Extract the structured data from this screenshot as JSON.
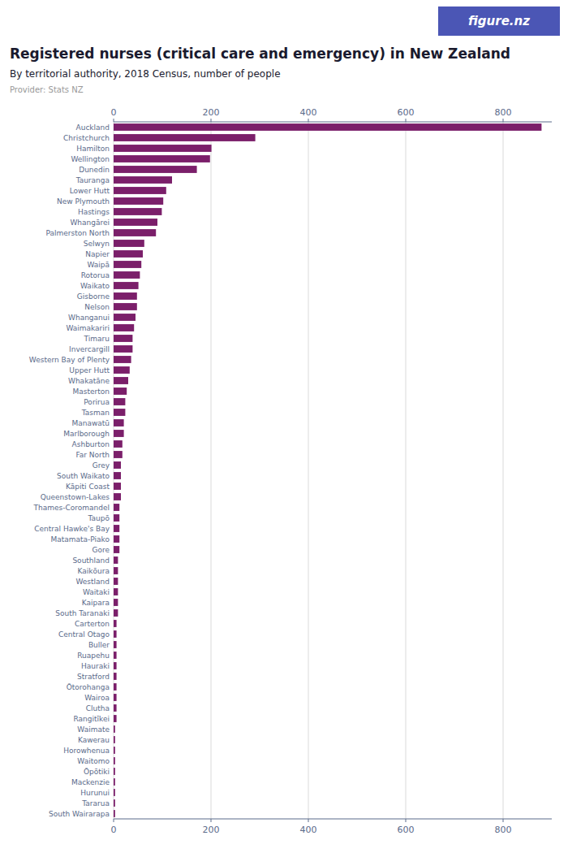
{
  "chart_data": {
    "type": "bar",
    "orientation": "horizontal",
    "title": "Registered nurses (critical care and emergency) in New Zealand",
    "subtitle": "By territorial authority, 2018 Census, number of people",
    "annotations": [
      {
        "text": "Provider: Stats NZ",
        "color": "#999999"
      },
      {
        "text": "figure.nz",
        "color": "#4b56b5"
      }
    ],
    "color": "#7b1f6a",
    "grid": true,
    "xlim": [
      0,
      900
    ],
    "xticks": [
      0,
      200,
      400,
      600,
      800
    ],
    "categories": [
      "Auckland",
      "Christchurch",
      "Hamilton",
      "Wellington",
      "Dunedin",
      "Tauranga",
      "Lower Hutt",
      "New Plymouth",
      "Hastings",
      "Whangārei",
      "Palmerston North",
      "Selwyn",
      "Napier",
      "Waipā",
      "Rotorua",
      "Waikato",
      "Gisborne",
      "Nelson",
      "Whanganui",
      "Waimakariri",
      "Timaru",
      "Invercargill",
      "Western Bay of Plenty",
      "Upper Hutt",
      "Whakatāne",
      "Masterton",
      "Porirua",
      "Tasman",
      "Manawatū",
      "Marlborough",
      "Ashburton",
      "Far North",
      "Grey",
      "South Waikato",
      "Kāpiti Coast",
      "Queenstown-Lakes",
      "Thames-Coromandel",
      "Taupō",
      "Central Hawke's Bay",
      "Matamata-Piako",
      "Gore",
      "Southland",
      "Kaikōura",
      "Westland",
      "Waitaki",
      "Kaipara",
      "South Taranaki",
      "Carterton",
      "Central Otago",
      "Buller",
      "Ruapehu",
      "Hauraki",
      "Stratford",
      "Ōtorohanga",
      "Wairoa",
      "Clutha",
      "Rangitīkei",
      "Waimate",
      "Kawerau",
      "Horowhenua",
      "Waitomo",
      "Ōpōtiki",
      "Mackenzie",
      "Hurunui",
      "Tararua",
      "South Wairarapa"
    ],
    "values": [
      879,
      291,
      201,
      198,
      171,
      120,
      108,
      102,
      99,
      90,
      87,
      63,
      60,
      57,
      54,
      51,
      48,
      48,
      45,
      42,
      39,
      39,
      36,
      33,
      30,
      27,
      24,
      24,
      21,
      21,
      18,
      18,
      15,
      15,
      15,
      15,
      12,
      12,
      12,
      12,
      12,
      9,
      9,
      9,
      9,
      9,
      9,
      6,
      6,
      6,
      6,
      6,
      6,
      6,
      6,
      6,
      6,
      3,
      3,
      3,
      3,
      3,
      3,
      3,
      3,
      3
    ]
  }
}
